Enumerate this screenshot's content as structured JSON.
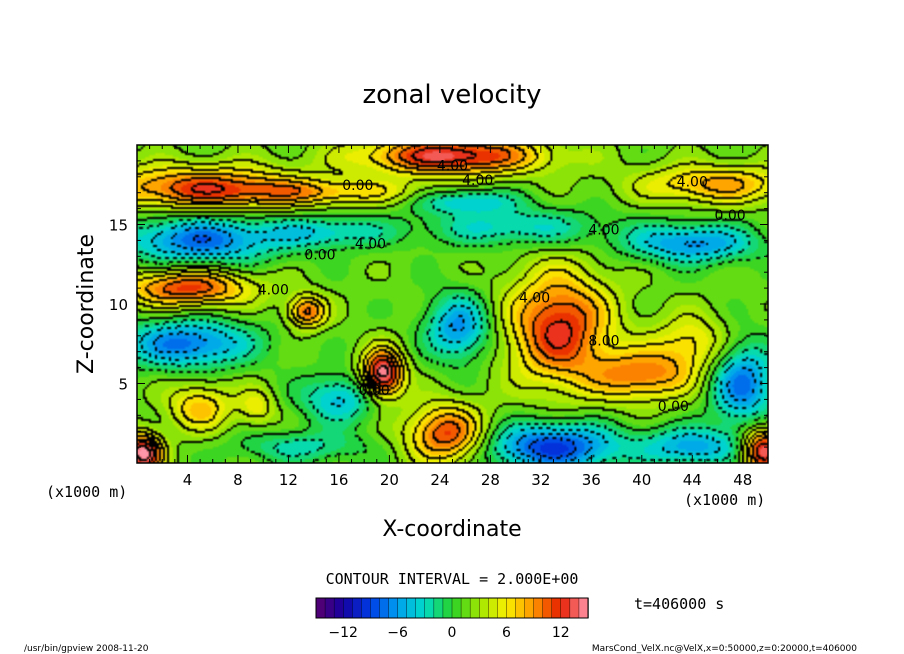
{
  "chart_data": {
    "type": "heatmap",
    "title": "zonal velocity",
    "xlabel": "X-coordinate",
    "ylabel": "Z-coordinate",
    "x_unit_label": "(x1000 m)",
    "y_unit_label": "(x1000 m)",
    "xlim": [
      0,
      50
    ],
    "ylim": [
      0,
      20
    ],
    "x_ticks": [
      "4",
      "8",
      "12",
      "16",
      "20",
      "24",
      "28",
      "32",
      "36",
      "40",
      "44",
      "48"
    ],
    "y_ticks": [
      "5",
      "10",
      "15"
    ],
    "contour_interval_text": "CONTOUR INTERVAL = 2.000E+00",
    "time_text": "t=406000 s",
    "colorbar": {
      "range": [
        -15,
        15
      ],
      "tick_labels": [
        "−12",
        "−6",
        "0",
        "6",
        "12"
      ],
      "tick_values": [
        -12,
        -6,
        0,
        6,
        12
      ]
    },
    "contour_labels": [
      {
        "text": "4.00",
        "x": 25.0,
        "y": 18.7
      },
      {
        "text": "4.00",
        "x": 27.0,
        "y": 17.8
      },
      {
        "text": "0.00",
        "x": 17.5,
        "y": 17.5
      },
      {
        "text": "4.00",
        "x": 44.0,
        "y": 17.7
      },
      {
        "text": "0.00",
        "x": 47.0,
        "y": 15.6
      },
      {
        "text": "4.00",
        "x": 18.5,
        "y": 13.8
      },
      {
        "text": "0.00",
        "x": 14.5,
        "y": 13.1
      },
      {
        "text": "4.00",
        "x": 37.0,
        "y": 14.7
      },
      {
        "text": "4.00",
        "x": 10.8,
        "y": 10.9
      },
      {
        "text": "4.00",
        "x": 31.5,
        "y": 10.4
      },
      {
        "text": "8.00",
        "x": 37.0,
        "y": 7.7
      },
      {
        "text": "0.00",
        "x": 42.5,
        "y": 3.6
      },
      {
        "text": "0.00",
        "x": 18.8,
        "y": 4.6
      }
    ],
    "value_blobs": [
      {
        "x": 25,
        "z": 19.3,
        "rx": 7,
        "rz": 1.2,
        "v": 12
      },
      {
        "x": 5,
        "z": 17.3,
        "rx": 8,
        "rz": 1.4,
        "v": 9
      },
      {
        "x": 46,
        "z": 17.5,
        "rx": 6,
        "rz": 1.2,
        "v": 7
      },
      {
        "x": 15,
        "z": 17.0,
        "rx": 9,
        "rz": 0.8,
        "v": 5
      },
      {
        "x": 26,
        "z": 16.5,
        "rx": 4,
        "rz": 0.8,
        "v": -6
      },
      {
        "x": 5,
        "z": 14.0,
        "rx": 6,
        "rz": 1.5,
        "v": -9
      },
      {
        "x": 44,
        "z": 13.8,
        "rx": 5,
        "rz": 1.2,
        "v": -8
      },
      {
        "x": 30,
        "z": 14.8,
        "rx": 7,
        "rz": 1.2,
        "v": -5
      },
      {
        "x": 15,
        "z": 14.5,
        "rx": 5,
        "rz": 1.0,
        "v": -5
      },
      {
        "x": 4,
        "z": 11.0,
        "rx": 5,
        "rz": 1.2,
        "v": 10
      },
      {
        "x": 13.5,
        "z": 9.5,
        "rx": 1.5,
        "rz": 1.0,
        "v": 9
      },
      {
        "x": 33.5,
        "z": 8.5,
        "rx": 4,
        "rz": 3.5,
        "v": 11
      },
      {
        "x": 40,
        "z": 5.5,
        "rx": 4,
        "rz": 1.6,
        "v": 8
      },
      {
        "x": 44,
        "z": 7.5,
        "rx": 3,
        "rz": 1.8,
        "v": 5
      },
      {
        "x": 19.5,
        "z": 5.6,
        "rx": 1.6,
        "rz": 1.5,
        "v": 14
      },
      {
        "x": 25.5,
        "z": 8.5,
        "rx": 2.5,
        "rz": 2.0,
        "v": -8
      },
      {
        "x": 4,
        "z": 7.5,
        "rx": 5,
        "rz": 1.5,
        "v": -9
      },
      {
        "x": 48,
        "z": 5.0,
        "rx": 2.5,
        "rz": 2.5,
        "v": -9
      },
      {
        "x": 5,
        "z": 3.5,
        "rx": 2.5,
        "rz": 1.5,
        "v": 6
      },
      {
        "x": 9.5,
        "z": 3.5,
        "rx": 1.5,
        "rz": 1.2,
        "v": 4
      },
      {
        "x": 16,
        "z": 4.0,
        "rx": 3,
        "rz": 1.5,
        "v": -6
      },
      {
        "x": 24.5,
        "z": 1.8,
        "rx": 3,
        "rz": 1.8,
        "v": 10
      },
      {
        "x": 33,
        "z": 1.0,
        "rx": 5,
        "rz": 1.5,
        "v": -11
      },
      {
        "x": 44,
        "z": 1.0,
        "rx": 4,
        "rz": 1.2,
        "v": -7
      },
      {
        "x": 0.5,
        "z": 0.6,
        "rx": 1.5,
        "rz": 1.2,
        "v": 14
      },
      {
        "x": 49.6,
        "z": 0.8,
        "rx": 1.6,
        "rz": 1.4,
        "v": 13
      },
      {
        "x": 13,
        "z": 1.0,
        "rx": 5,
        "rz": 1.0,
        "v": -4
      }
    ]
  },
  "footer": {
    "left_text": "/usr/bin/gpview  2008-11-20",
    "right_text": "MarsCond_VelX.nc@VelX,x=0:50000,z=0:20000,t=406000"
  }
}
